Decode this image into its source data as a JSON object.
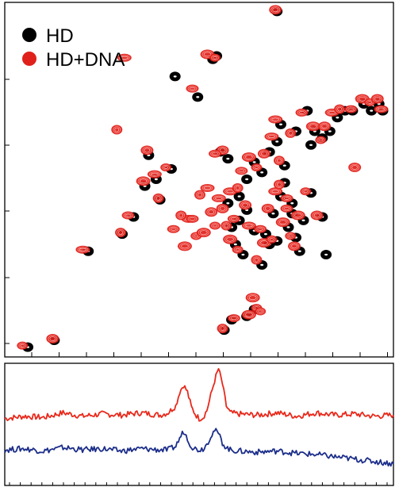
{
  "chart_data": [
    {
      "type": "scatter",
      "grid": false,
      "legend_position": "top-left",
      "legend": [
        {
          "label": "HD",
          "color": "#000000"
        },
        {
          "label": "HD+DNA",
          "color": "#e0201b"
        }
      ],
      "xlim": [
        0,
        100
      ],
      "ylim": [
        0,
        100
      ],
      "series": [
        {
          "name": "HD",
          "color": "#000000",
          "points": [
            [
              4,
              1
            ],
            [
              11,
              3
            ],
            [
              20,
              29
            ],
            [
              29,
              34
            ],
            [
              32,
              39
            ],
            [
              35,
              48
            ],
            [
              42,
              53
            ],
            [
              36,
              57
            ],
            [
              38,
              50
            ],
            [
              39,
              44
            ],
            [
              43,
              80
            ],
            [
              49,
              74
            ],
            [
              55,
              58
            ],
            [
              57,
              43
            ],
            [
              58,
              36
            ],
            [
              60,
              38
            ],
            [
              59,
              31
            ],
            [
              61,
              28
            ],
            [
              62,
              41
            ],
            [
              64,
              35
            ],
            [
              66,
              25
            ],
            [
              67,
              34
            ],
            [
              68,
              31
            ],
            [
              70,
              32
            ],
            [
              69,
              40
            ],
            [
              71,
              45
            ],
            [
              72,
              49
            ],
            [
              74,
              43
            ],
            [
              73,
              36
            ],
            [
              75,
              33
            ],
            [
              76,
              29
            ],
            [
              60,
              45
            ],
            [
              62,
              50
            ],
            [
              64,
              55
            ],
            [
              66,
              52
            ],
            [
              68,
              58
            ],
            [
              70,
              61
            ],
            [
              72,
              54
            ],
            [
              74,
              40
            ],
            [
              77,
              38
            ],
            [
              79,
              46
            ],
            [
              82,
              39
            ],
            [
              71,
              66
            ],
            [
              75,
              64
            ],
            [
              78,
              70
            ],
            [
              80,
              64
            ],
            [
              82,
              62
            ],
            [
              84,
              64
            ],
            [
              86,
              68
            ],
            [
              88,
              70
            ],
            [
              90,
              70
            ],
            [
              93,
              72
            ],
            [
              95,
              70
            ],
            [
              97,
              72
            ],
            [
              98,
              70
            ],
            [
              56,
              6
            ],
            [
              58,
              9
            ],
            [
              62,
              10
            ],
            [
              64,
              12
            ],
            [
              70,
              99
            ],
            [
              53,
              85
            ],
            [
              54,
              86
            ],
            [
              83,
              28
            ],
            [
              79,
              60
            ],
            [
              57,
              56
            ]
          ]
        },
        {
          "name": "HD+DNA",
          "color": "#e0201b",
          "points": [
            [
              3,
              1
            ],
            [
              11,
              3
            ],
            [
              19,
              29
            ],
            [
              29,
              34
            ],
            [
              31,
              39
            ],
            [
              35,
              49
            ],
            [
              41,
              53
            ],
            [
              36,
              58
            ],
            [
              38,
              51
            ],
            [
              39,
              44
            ],
            [
              48,
              76
            ],
            [
              52,
              86
            ],
            [
              54,
              85
            ],
            [
              56,
              58
            ],
            [
              55,
              44
            ],
            [
              57,
              36
            ],
            [
              59,
              38
            ],
            [
              58,
              32
            ],
            [
              60,
              29
            ],
            [
              62,
              42
            ],
            [
              63,
              36
            ],
            [
              65,
              26
            ],
            [
              66,
              35
            ],
            [
              67,
              31
            ],
            [
              69,
              32
            ],
            [
              68,
              41
            ],
            [
              70,
              46
            ],
            [
              71,
              48
            ],
            [
              73,
              44
            ],
            [
              72,
              37
            ],
            [
              74,
              33
            ],
            [
              75,
              30
            ],
            [
              47,
              38
            ],
            [
              45,
              39
            ],
            [
              43,
              35
            ],
            [
              46,
              30
            ],
            [
              49,
              33
            ],
            [
              53,
              40
            ],
            [
              52,
              47
            ],
            [
              50,
              45
            ],
            [
              48,
              38
            ],
            [
              51,
              34
            ],
            [
              54,
              36
            ],
            [
              56,
              41
            ],
            [
              58,
              46
            ],
            [
              60,
              47
            ],
            [
              61,
              52
            ],
            [
              63,
              56
            ],
            [
              65,
              53
            ],
            [
              67,
              57
            ],
            [
              69,
              62
            ],
            [
              71,
              55
            ],
            [
              73,
              41
            ],
            [
              76,
              39
            ],
            [
              78,
              46
            ],
            [
              81,
              39
            ],
            [
              70,
              67
            ],
            [
              74,
              63
            ],
            [
              77,
              69
            ],
            [
              80,
              65
            ],
            [
              82,
              61
            ],
            [
              83,
              65
            ],
            [
              85,
              69
            ],
            [
              87,
              70
            ],
            [
              90,
              70
            ],
            [
              93,
              73
            ],
            [
              95,
              72
            ],
            [
              97,
              73
            ],
            [
              98,
              70
            ],
            [
              56,
              6
            ],
            [
              59,
              9
            ],
            [
              63,
              10
            ],
            [
              65,
              12
            ],
            [
              70,
              99
            ],
            [
              30,
              85
            ],
            [
              28,
              64
            ],
            [
              54,
              57
            ],
            [
              64,
              15
            ],
            [
              66,
              11
            ],
            [
              91,
              53
            ]
          ]
        }
      ]
    },
    {
      "type": "line",
      "grid": false,
      "xlim": [
        0,
        100
      ],
      "ylim": [
        0,
        100
      ],
      "series": [
        {
          "color": "#e8291b",
          "x": [
            0,
            5,
            10,
            15,
            20,
            25,
            30,
            35,
            40,
            42,
            44,
            45,
            46,
            47,
            48,
            49,
            50,
            51,
            52,
            53,
            54,
            55,
            56,
            57,
            58,
            60,
            65,
            70,
            75,
            80,
            85,
            90,
            95,
            100
          ],
          "values": [
            55,
            57,
            56,
            60,
            57,
            59,
            58,
            60,
            58,
            60,
            66,
            78,
            84,
            78,
            65,
            59,
            55,
            56,
            62,
            75,
            88,
            98,
            85,
            66,
            60,
            59,
            58,
            60,
            57,
            60,
            58,
            59,
            57,
            58
          ]
        },
        {
          "color": "#1c2e8a",
          "x": [
            0,
            5,
            10,
            15,
            20,
            25,
            30,
            35,
            40,
            42,
            44,
            45,
            46,
            47,
            48,
            49,
            50,
            51,
            52,
            53,
            54,
            55,
            56,
            57,
            58,
            60,
            65,
            70,
            75,
            80,
            85,
            90,
            95,
            100
          ],
          "values": [
            28,
            29,
            27,
            30,
            28,
            29,
            27,
            29,
            28,
            28,
            31,
            38,
            44,
            38,
            31,
            29,
            28,
            29,
            33,
            40,
            45,
            42,
            34,
            30,
            28,
            27,
            26,
            27,
            25,
            24,
            22,
            20,
            18,
            16
          ]
        }
      ]
    }
  ]
}
